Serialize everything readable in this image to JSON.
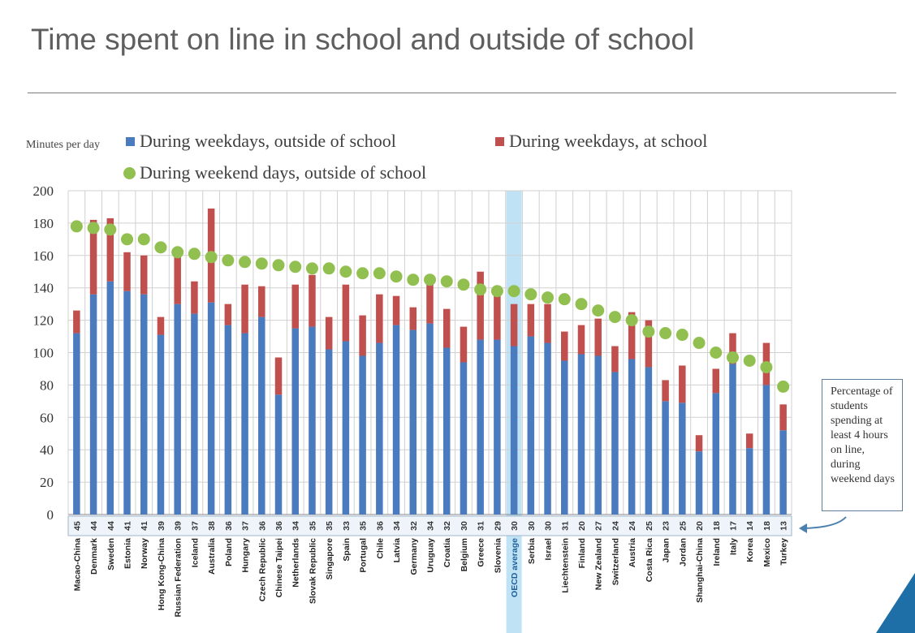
{
  "title": "Time spent on line in school and outside of school",
  "y_axis_caption": "Minutes per day",
  "annotation_text": "Percentage of students spending at least 4 hours on line, during weekend days",
  "colors": {
    "weekday_outside": "#4a7bbf",
    "weekday_school": "#c0504d",
    "weekend": "#92c050",
    "highlight": "#bfe3f5",
    "corner": "#1e6fa8"
  },
  "chart_data": {
    "type": "bar",
    "stacked": true,
    "title": "Time spent on line in school and outside of school",
    "ylabel": "Minutes per day",
    "ylim": [
      0,
      200
    ],
    "yticks": [
      0,
      20,
      40,
      60,
      80,
      100,
      120,
      140,
      160,
      180,
      200
    ],
    "grid": true,
    "highlight_category": "OECD average",
    "categories": [
      "Macao-China",
      "Denmark",
      "Sweden",
      "Estonia",
      "Norway",
      "Hong Kong-China",
      "Russian Federation",
      "Iceland",
      "Australia",
      "Poland",
      "Hungary",
      "Czech Republic",
      "Chinese Taipei",
      "Netherlands",
      "Slovak Republic",
      "Singapore",
      "Spain",
      "Portugal",
      "Chile",
      "Latvia",
      "Germany",
      "Uruguay",
      "Croatia",
      "Belgium",
      "Greece",
      "Slovenia",
      "OECD average",
      "Serbia",
      "Israel",
      "Liechtenstein",
      "Finland",
      "New Zealand",
      "Switzerland",
      "Austria",
      "Costa Rica",
      "Japan",
      "Jordan",
      "Shanghai-China",
      "Ireland",
      "Italy",
      "Korea",
      "Mexico",
      "Turkey"
    ],
    "percent_labels": [
      "45",
      "44",
      "44",
      "41",
      "41",
      "39",
      "39",
      "37",
      "38",
      "36",
      "37",
      "36",
      "36",
      "34",
      "35",
      "35",
      "33",
      "35",
      "36",
      "34",
      "32",
      "34",
      "32",
      "30",
      "31",
      "29",
      "30",
      "30",
      "30",
      "31",
      "20",
      "27",
      "24",
      "24",
      "25",
      "23",
      "25",
      "20",
      "18",
      "17",
      "14",
      "18",
      "13"
    ],
    "series": [
      {
        "name": "During weekdays, outside of school",
        "type": "bar",
        "values": [
          112,
          136,
          144,
          138,
          136,
          111,
          130,
          124,
          131,
          117,
          112,
          122,
          74,
          115,
          116,
          102,
          107,
          98,
          106,
          117,
          114,
          118,
          103,
          94,
          108,
          108,
          104,
          110,
          106,
          95,
          99,
          98,
          88,
          96,
          91,
          70,
          69,
          39,
          75,
          93,
          41,
          80,
          52
        ]
      },
      {
        "name": "During weekdays, at school",
        "type": "bar",
        "values": [
          14,
          46,
          39,
          24,
          24,
          11,
          29,
          20,
          58,
          13,
          30,
          19,
          23,
          27,
          32,
          20,
          35,
          25,
          30,
          18,
          14,
          24,
          24,
          22,
          42,
          27,
          26,
          20,
          24,
          18,
          18,
          23,
          16,
          29,
          29,
          13,
          23,
          10,
          15,
          19,
          9,
          26,
          16
        ]
      },
      {
        "name": "During weekend days, outside of school",
        "type": "dot",
        "values": [
          178,
          177,
          176,
          170,
          170,
          165,
          162,
          161,
          159,
          157,
          156,
          155,
          154,
          153,
          152,
          152,
          150,
          149,
          149,
          147,
          145,
          145,
          144,
          142,
          139,
          138,
          138,
          136,
          134,
          133,
          130,
          126,
          122,
          120,
          113,
          112,
          111,
          106,
          100,
          97,
          95,
          91,
          79
        ]
      }
    ]
  }
}
